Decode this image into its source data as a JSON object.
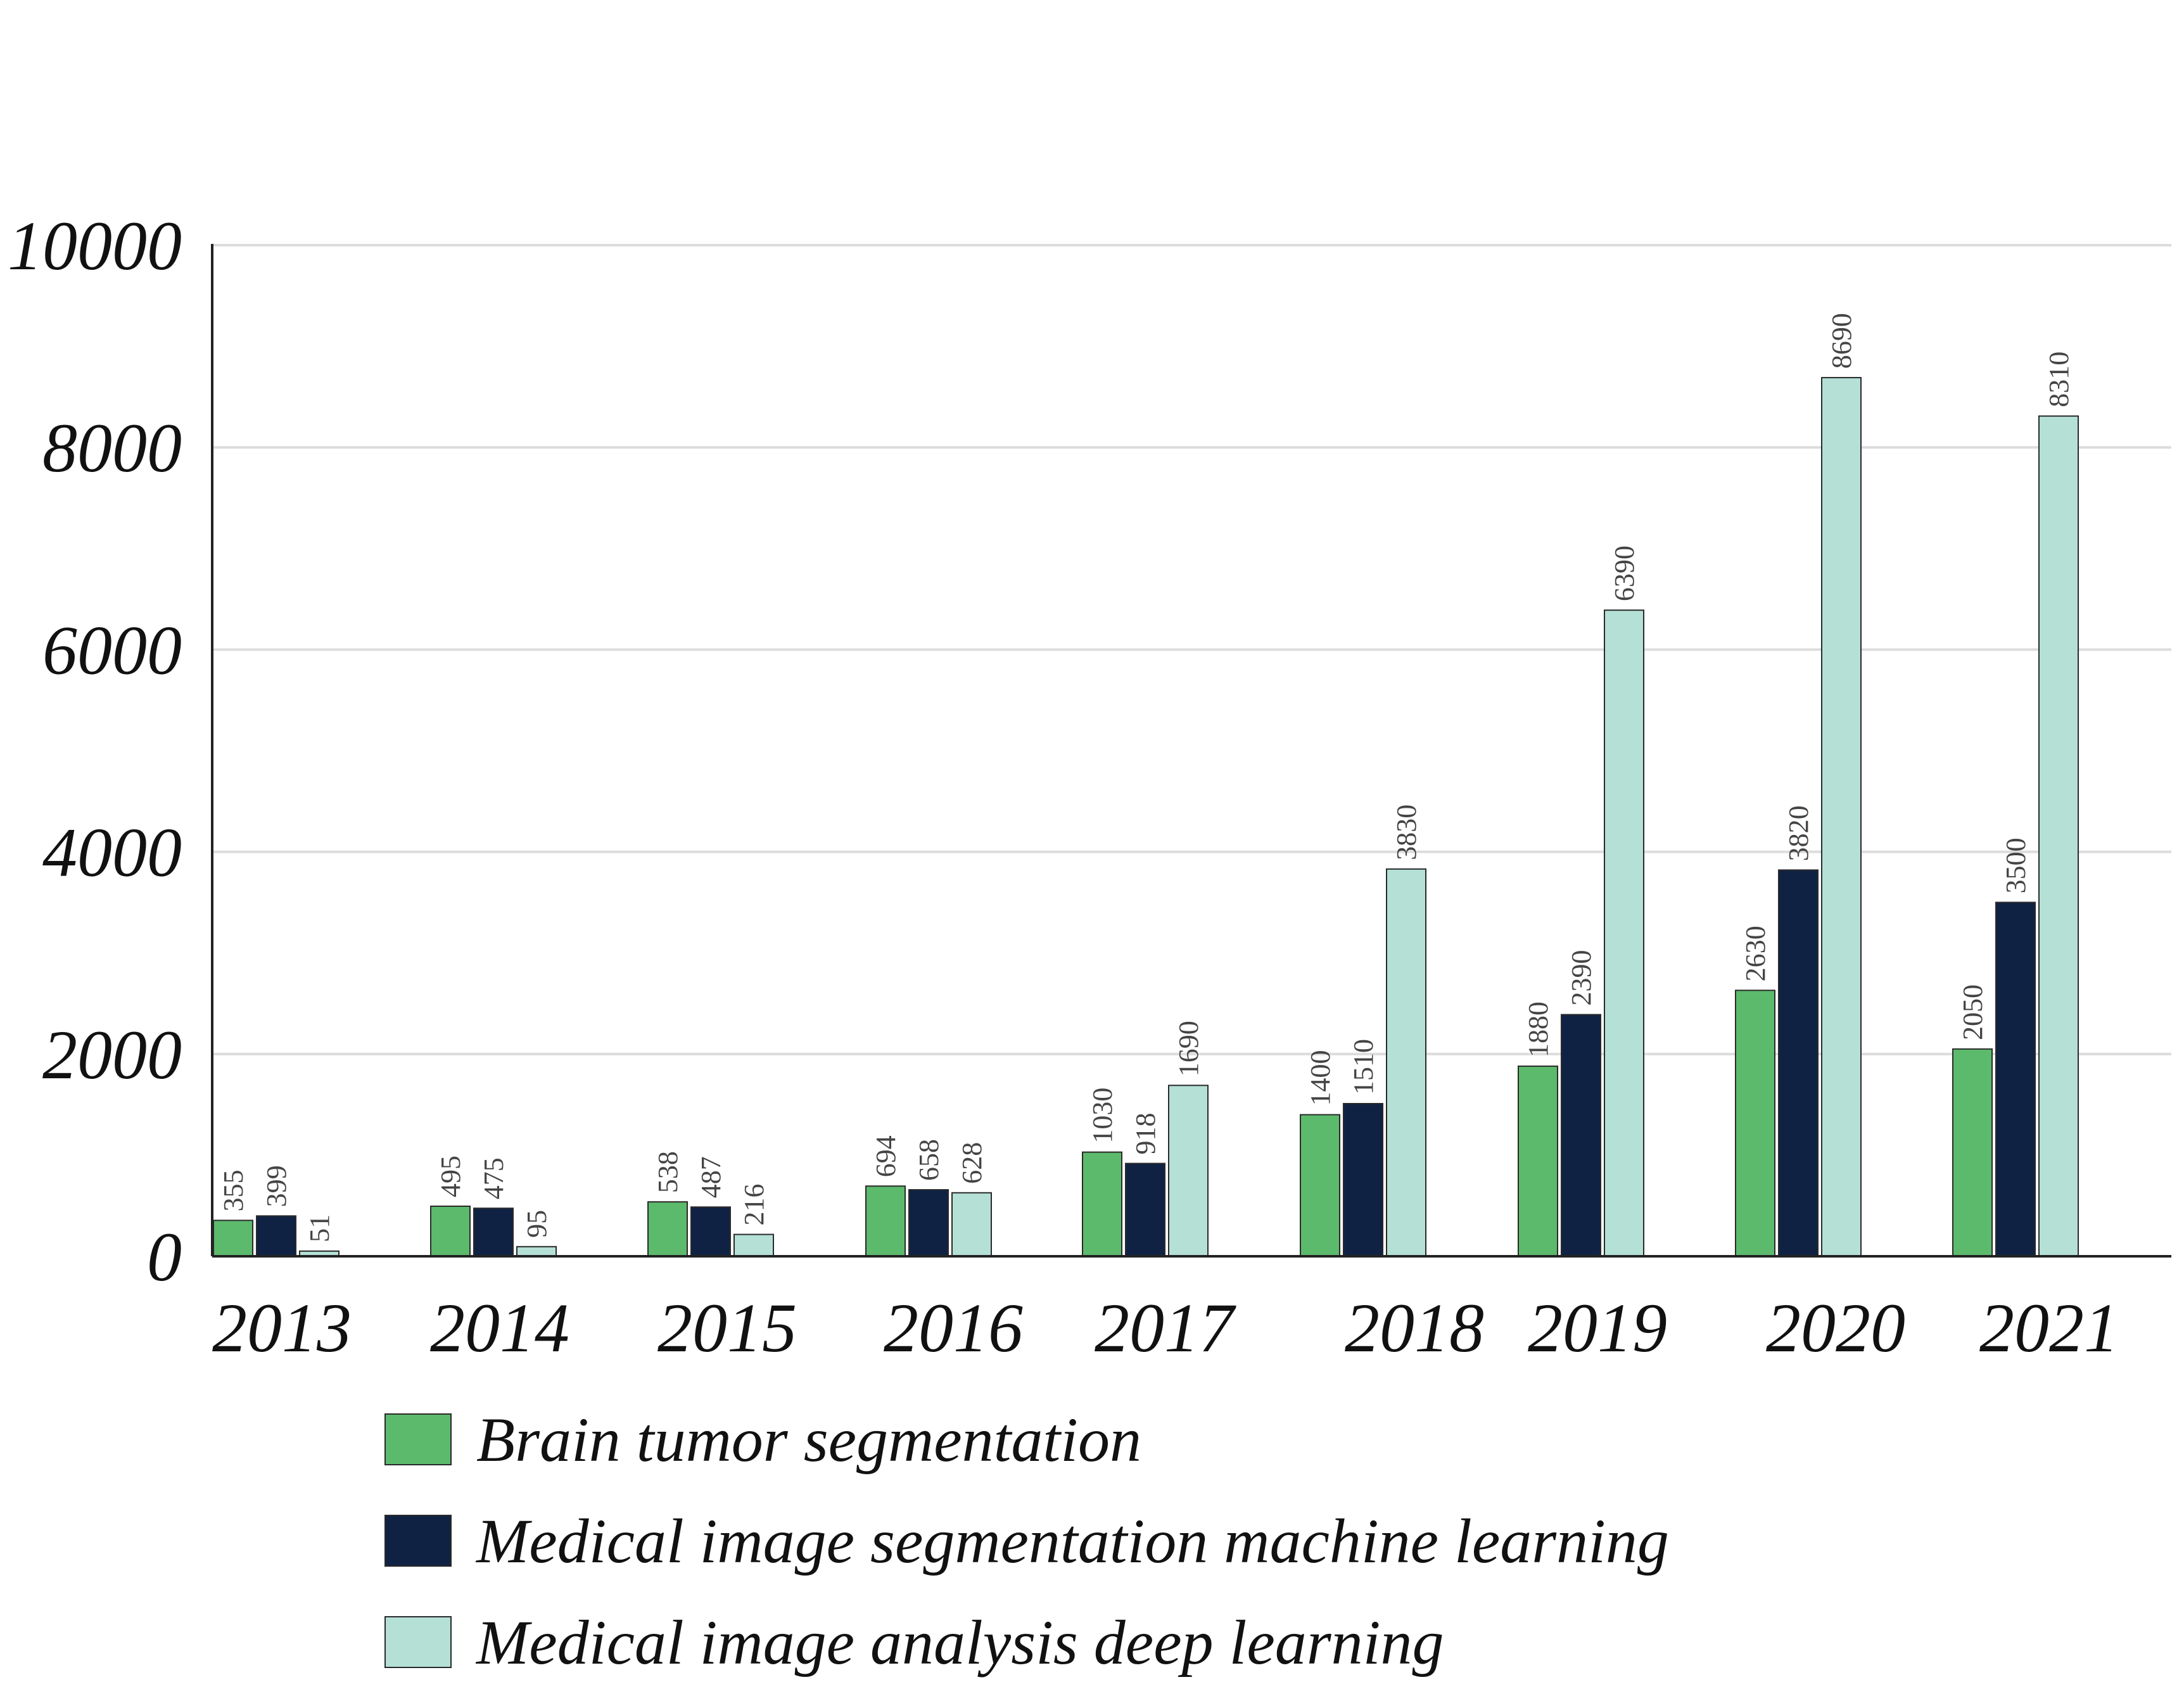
{
  "chart_data": {
    "type": "bar",
    "title": "",
    "xlabel": "",
    "ylabel": "",
    "ylim": [
      0,
      10000
    ],
    "yticks": [
      0,
      2000,
      4000,
      6000,
      8000,
      10000
    ],
    "grid": "horizontal",
    "legend_position": "bottom",
    "categories": [
      "2013",
      "2014",
      "2015",
      "2016",
      "2017",
      "2018",
      "2019",
      "2020",
      "2021"
    ],
    "series": [
      {
        "name": "Brain tumor segmentation",
        "color": "#5cba6c",
        "values": [
          355,
          495,
          538,
          694,
          1030,
          1400,
          1880,
          2630,
          2050
        ]
      },
      {
        "name": "Medical image segmentation machine learning",
        "color": "#102244",
        "values": [
          399,
          475,
          487,
          658,
          918,
          1510,
          2390,
          3820,
          3500
        ]
      },
      {
        "name": "Medical image analysis deep learning",
        "color": "#b4e0d6",
        "values": [
          51,
          95,
          216,
          628,
          1690,
          3830,
          6390,
          8690,
          8310
        ]
      }
    ]
  }
}
